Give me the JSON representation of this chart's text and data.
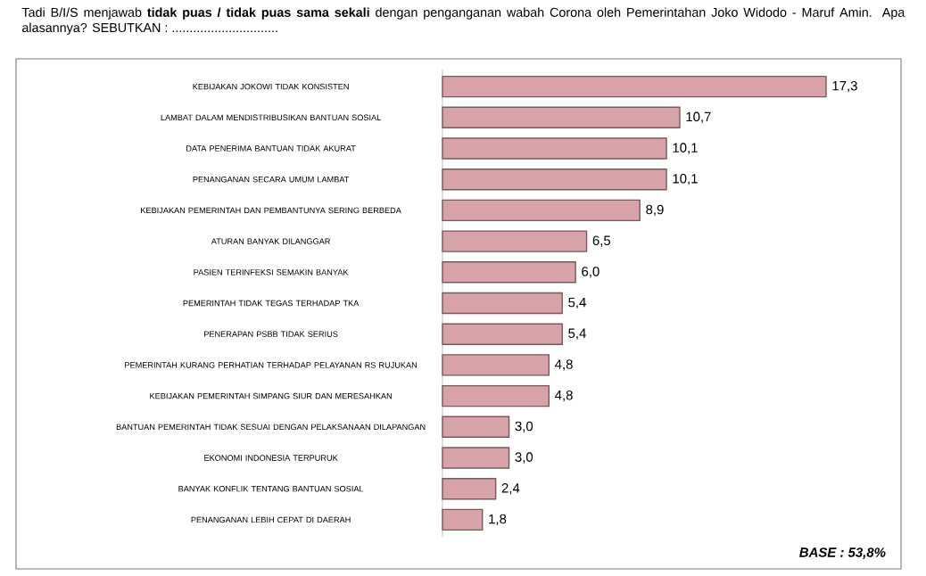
{
  "chart_data": {
    "type": "bar",
    "orientation": "horizontal",
    "title": "Tadi B/I/S menjawab **tidak puas / tidak puas sama sekali** dengan penganganan wabah Corona oleh Pemerintahan Joko Widodo - Maruf Amin. Apa alasannya? SEBUTKAN : ..............................",
    "categories": [
      "KEBIJAKAN JOKOWI TIDAK KONSISTEN",
      "LAMBAT DALAM MENDISTRIBUSIKAN BANTUAN SOSIAL",
      "DATA PENERIMA BANTUAN TIDAK AKURAT",
      "PENANGANAN SECARA UMUM LAMBAT",
      "KEBIJAKAN PEMERINTAH DAN PEMBANTUNYA SERING BERBEDA",
      "ATURAN BANYAK DILANGGAR",
      "PASIEN TERINFEKSI SEMAKIN BANYAK",
      "PEMERINTAH TIDAK TEGAS TERHADAP TKA",
      "PENERAPAN PSBB TIDAK SERIUS",
      "PEMERINTAH KURANG PERHATIAN TERHADAP PELAYANAN RS RUJUKAN",
      "KEBIJAKAN PEMERINTAH SIMPANG SIUR DAN MERESAHKAN",
      "BANTUAN PEMERINTAH TIDAK SESUAI DENGAN PELAKSANAAN DILAPANGAN",
      "EKONOMI INDONESIA TERPURUK",
      "BANYAK KONFLIK TENTANG BANTUAN SOSIAL",
      "PENANGANAN LEBIH CEPAT DI DAERAH"
    ],
    "values": [
      17.3,
      10.7,
      10.1,
      10.1,
      8.9,
      6.5,
      6.0,
      5.4,
      5.4,
      4.8,
      4.8,
      3.0,
      3.0,
      2.4,
      1.8
    ],
    "value_labels": [
      "17,3",
      "10,7",
      "10,1",
      "10,1",
      "8,9",
      "6,5",
      "6,0",
      "5,4",
      "5,4",
      "4,8",
      "4,8",
      "3,0",
      "3,0",
      "2,4",
      "1,8"
    ],
    "color": "#d8a3a8",
    "annotations": [
      "BASE : 53,8%"
    ]
  }
}
